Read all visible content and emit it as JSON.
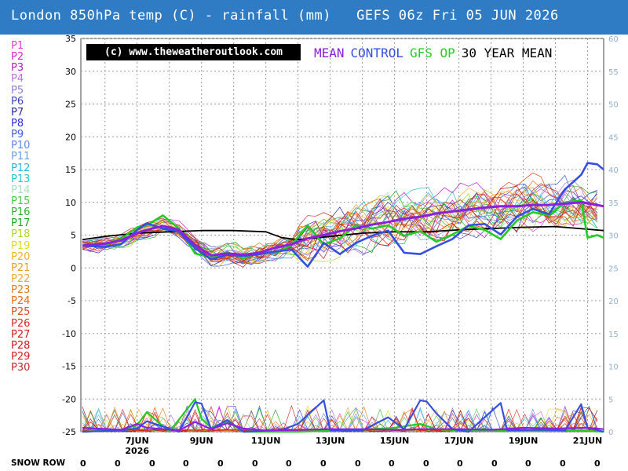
{
  "title": "London 850hPa temp (C) - rainfall (mm)   GEFS 06z Fri 05 JUN 2026",
  "copyright": "(c) www.theweatheroutlook.com",
  "legend": [
    {
      "label": "MEAN",
      "color": "#8a20e0"
    },
    {
      "label": "CONTROL",
      "color": "#3550e0"
    },
    {
      "label": "GFS OP",
      "color": "#22cc22"
    },
    {
      "label": "30 YEAR MEAN",
      "color": "#000000"
    }
  ],
  "members": [
    {
      "label": "P1",
      "color": "#e83ad6"
    },
    {
      "label": "P2",
      "color": "#dd22c8"
    },
    {
      "label": "P3",
      "color": "#b21dbf"
    },
    {
      "label": "P4",
      "color": "#b872e0"
    },
    {
      "label": "P5",
      "color": "#9a78d8"
    },
    {
      "label": "P6",
      "color": "#3a46b8"
    },
    {
      "label": "P7",
      "color": "#2a2aa8"
    },
    {
      "label": "P8",
      "color": "#2a2ae6"
    },
    {
      "label": "P9",
      "color": "#3c60d8"
    },
    {
      "label": "P10",
      "color": "#5a8ae6"
    },
    {
      "label": "P11",
      "color": "#6aa0e6"
    },
    {
      "label": "P12",
      "color": "#22b8e0"
    },
    {
      "label": "P13",
      "color": "#20c6d0"
    },
    {
      "label": "P14",
      "color": "#a8e0c0"
    },
    {
      "label": "P15",
      "color": "#44cc44"
    },
    {
      "label": "P16",
      "color": "#28b828"
    },
    {
      "label": "P17",
      "color": "#1aa81a"
    },
    {
      "label": "P18",
      "color": "#a8d820"
    },
    {
      "label": "P19",
      "color": "#e0d820"
    },
    {
      "label": "P20",
      "color": "#f0b020"
    },
    {
      "label": "P21",
      "color": "#e8a018"
    },
    {
      "label": "P22",
      "color": "#f0a830"
    },
    {
      "label": "P23",
      "color": "#e87818"
    },
    {
      "label": "P24",
      "color": "#e86818"
    },
    {
      "label": "P25",
      "color": "#e04818"
    },
    {
      "label": "P26",
      "color": "#d82818"
    },
    {
      "label": "P27",
      "color": "#cc1a1a"
    },
    {
      "label": "P28",
      "color": "#c81818"
    },
    {
      "label": "P29",
      "color": "#d22020"
    },
    {
      "label": "P30",
      "color": "#c02828"
    }
  ],
  "snow_row": {
    "label": "SNOW ROW",
    "values": [
      "0",
      "0",
      "0",
      "0",
      "0",
      "0",
      "0",
      "0",
      "0",
      "0",
      "0",
      "0",
      "0",
      "0",
      "0",
      "0"
    ]
  },
  "chart_data": {
    "type": "line",
    "title": "London 850hPa temp (C) - rainfall (mm)   GEFS 06z Fri 05 JUN 2026",
    "y_left": {
      "label": "850hPa temp (C)",
      "lim": [
        -25,
        35
      ],
      "ticks": [
        "35",
        "30",
        "25",
        "20",
        "15",
        "10",
        "5",
        "0",
        "-5",
        "-10",
        "-15",
        "-20",
        "-25"
      ]
    },
    "y_right": {
      "label": "rainfall (mm)",
      "lim": [
        0,
        60
      ],
      "ticks": [
        "60",
        "55",
        "50",
        "45",
        "40",
        "35",
        "30",
        "25",
        "20",
        "15",
        "10",
        "5",
        "0"
      ]
    },
    "x_ticks": [
      {
        "label": "7JUN",
        "sub": "2026",
        "day": 7
      },
      {
        "label": "9JUN",
        "day": 9
      },
      {
        "label": "11JUN",
        "day": 11
      },
      {
        "label": "13JUN",
        "day": 13
      },
      {
        "label": "15JUN",
        "day": 15
      },
      {
        "label": "17JUN",
        "day": 17
      },
      {
        "label": "19JUN",
        "day": 19
      },
      {
        "label": "21JUN",
        "day": 21
      }
    ],
    "x_range_days": [
      5.25,
      21.5
    ],
    "grid": true,
    "mean_temp": [
      [
        5.3,
        3.4
      ],
      [
        6.0,
        3.7
      ],
      [
        6.5,
        4.2
      ],
      [
        7.0,
        5.3
      ],
      [
        7.3,
        5.8
      ],
      [
        7.8,
        6.4
      ],
      [
        8.3,
        5.8
      ],
      [
        8.8,
        3.5
      ],
      [
        9.3,
        1.9
      ],
      [
        9.8,
        2.2
      ],
      [
        10.3,
        2.0
      ],
      [
        10.8,
        2.3
      ],
      [
        11.3,
        3.1
      ],
      [
        11.8,
        3.6
      ],
      [
        12.3,
        4.5
      ],
      [
        12.8,
        5.0
      ],
      [
        13.3,
        5.6
      ],
      [
        13.8,
        6.0
      ],
      [
        14.3,
        6.6
      ],
      [
        14.8,
        7.0
      ],
      [
        15.3,
        7.5
      ],
      [
        15.8,
        7.8
      ],
      [
        16.3,
        8.3
      ],
      [
        16.8,
        8.6
      ],
      [
        17.3,
        8.9
      ],
      [
        17.8,
        9.2
      ],
      [
        18.3,
        9.4
      ],
      [
        18.8,
        9.4
      ],
      [
        19.3,
        9.6
      ],
      [
        19.8,
        9.6
      ],
      [
        20.3,
        9.8
      ],
      [
        20.8,
        10.0
      ],
      [
        21.3,
        9.6
      ],
      [
        21.5,
        9.4
      ]
    ],
    "control_temp": [
      [
        5.3,
        3.4
      ],
      [
        6.0,
        3.2
      ],
      [
        6.5,
        3.6
      ],
      [
        7.0,
        5.8
      ],
      [
        7.3,
        6.8
      ],
      [
        7.8,
        6.0
      ],
      [
        8.3,
        5.5
      ],
      [
        8.8,
        3.0
      ],
      [
        9.3,
        1.3
      ],
      [
        9.8,
        2.0
      ],
      [
        10.3,
        1.8
      ],
      [
        10.8,
        2.1
      ],
      [
        11.3,
        2.5
      ],
      [
        11.8,
        2.8
      ],
      [
        12.3,
        0.2
      ],
      [
        12.8,
        3.8
      ],
      [
        13.3,
        2.1
      ],
      [
        13.8,
        3.8
      ],
      [
        14.3,
        4.9
      ],
      [
        14.8,
        5.7
      ],
      [
        15.3,
        2.3
      ],
      [
        15.8,
        2.1
      ],
      [
        16.3,
        3.3
      ],
      [
        16.8,
        4.4
      ],
      [
        17.3,
        6.5
      ],
      [
        17.8,
        6.7
      ],
      [
        18.3,
        5.1
      ],
      [
        18.8,
        7.8
      ],
      [
        19.3,
        9.0
      ],
      [
        19.8,
        8.2
      ],
      [
        20.3,
        12.0
      ],
      [
        20.8,
        14.2
      ],
      [
        21.0,
        16.0
      ],
      [
        21.3,
        15.8
      ],
      [
        21.5,
        15.0
      ]
    ],
    "op_temp": [
      [
        5.3,
        3.4
      ],
      [
        6.0,
        3.5
      ],
      [
        6.5,
        4.4
      ],
      [
        7.0,
        6.2
      ],
      [
        7.3,
        6.5
      ],
      [
        7.8,
        8.0
      ],
      [
        8.3,
        6.0
      ],
      [
        8.8,
        2.2
      ],
      [
        9.3,
        1.6
      ],
      [
        9.8,
        2.4
      ],
      [
        10.3,
        1.4
      ],
      [
        10.8,
        2.4
      ],
      [
        11.3,
        2.2
      ],
      [
        11.8,
        3.5
      ],
      [
        12.3,
        6.5
      ],
      [
        12.8,
        3.6
      ],
      [
        13.3,
        4.5
      ],
      [
        13.8,
        6.5
      ],
      [
        14.3,
        6.0
      ],
      [
        14.8,
        6.5
      ],
      [
        15.3,
        4.9
      ],
      [
        15.8,
        5.6
      ],
      [
        16.3,
        4.0
      ],
      [
        16.8,
        5.1
      ],
      [
        17.3,
        6.4
      ],
      [
        17.8,
        5.8
      ],
      [
        18.3,
        4.4
      ],
      [
        18.8,
        7.2
      ],
      [
        19.3,
        8.5
      ],
      [
        19.8,
        8.0
      ],
      [
        20.3,
        10.0
      ],
      [
        20.8,
        10.3
      ],
      [
        21.0,
        4.6
      ],
      [
        21.3,
        5.0
      ],
      [
        21.5,
        4.6
      ]
    ],
    "climate_mean_temp": [
      [
        5.3,
        4.3
      ],
      [
        6.0,
        4.8
      ],
      [
        7.0,
        5.3
      ],
      [
        8.0,
        5.5
      ],
      [
        9.0,
        5.7
      ],
      [
        10.0,
        5.7
      ],
      [
        11.0,
        5.5
      ],
      [
        11.5,
        4.6
      ],
      [
        12.0,
        4.3
      ],
      [
        13.0,
        4.8
      ],
      [
        14.0,
        5.3
      ],
      [
        15.0,
        5.5
      ],
      [
        16.0,
        5.5
      ],
      [
        17.0,
        5.8
      ],
      [
        18.0,
        6.0
      ],
      [
        19.0,
        6.2
      ],
      [
        20.0,
        6.3
      ],
      [
        21.0,
        5.9
      ],
      [
        21.5,
        5.7
      ]
    ],
    "mean_rain": [
      [
        5.3,
        0.6
      ],
      [
        6.5,
        0.3
      ],
      [
        7.0,
        1.2
      ],
      [
        7.3,
        0.6
      ],
      [
        8.3,
        0.2
      ],
      [
        8.8,
        1.5
      ],
      [
        9.3,
        0.4
      ],
      [
        9.8,
        1.3
      ],
      [
        10.3,
        0.5
      ],
      [
        11.0,
        0.2
      ],
      [
        12.0,
        0.3
      ],
      [
        13.0,
        0.4
      ],
      [
        14.0,
        0.4
      ],
      [
        15.0,
        0.3
      ],
      [
        16.0,
        0.4
      ],
      [
        17.0,
        0.4
      ],
      [
        18.0,
        0.3
      ],
      [
        19.0,
        0.6
      ],
      [
        20.0,
        0.5
      ],
      [
        21.0,
        0.6
      ],
      [
        21.5,
        0.4
      ]
    ],
    "control_rain": [
      [
        5.3,
        0.0
      ],
      [
        6.5,
        0.2
      ],
      [
        7.0,
        0.5
      ],
      [
        7.3,
        1.6
      ],
      [
        8.3,
        0.0
      ],
      [
        8.8,
        4.5
      ],
      [
        9.0,
        4.3
      ],
      [
        9.3,
        0.4
      ],
      [
        9.8,
        1.8
      ],
      [
        10.3,
        0.0
      ],
      [
        11.5,
        0.3
      ],
      [
        12.0,
        1.2
      ],
      [
        12.8,
        4.8
      ],
      [
        13.0,
        0.2
      ],
      [
        14.0,
        0.2
      ],
      [
        14.8,
        2.2
      ],
      [
        15.3,
        0.4
      ],
      [
        15.8,
        4.8
      ],
      [
        16.0,
        4.6
      ],
      [
        16.3,
        2.8
      ],
      [
        16.8,
        0.4
      ],
      [
        17.3,
        0.0
      ],
      [
        18.3,
        4.4
      ],
      [
        18.5,
        0.2
      ],
      [
        19.5,
        0.3
      ],
      [
        20.3,
        0.2
      ],
      [
        20.8,
        4.2
      ],
      [
        21.0,
        0.6
      ],
      [
        21.5,
        0.0
      ]
    ],
    "op_rain": [
      [
        5.3,
        0.0
      ],
      [
        6.5,
        0.3
      ],
      [
        7.0,
        1.0
      ],
      [
        7.3,
        3.0
      ],
      [
        8.0,
        0.0
      ],
      [
        8.8,
        5.0
      ],
      [
        9.0,
        2.0
      ],
      [
        9.3,
        0.6
      ],
      [
        9.8,
        1.6
      ],
      [
        10.3,
        0.0
      ],
      [
        12.0,
        0.0
      ],
      [
        14.0,
        0.3
      ],
      [
        15.0,
        0.6
      ],
      [
        15.8,
        1.2
      ],
      [
        16.3,
        0.4
      ],
      [
        17.0,
        0.2
      ],
      [
        18.0,
        0.1
      ],
      [
        19.5,
        0.1
      ],
      [
        20.5,
        0.2
      ],
      [
        21.5,
        0.0
      ]
    ],
    "members_note": "30 perturbation members drawn as thin coloured lines"
  }
}
